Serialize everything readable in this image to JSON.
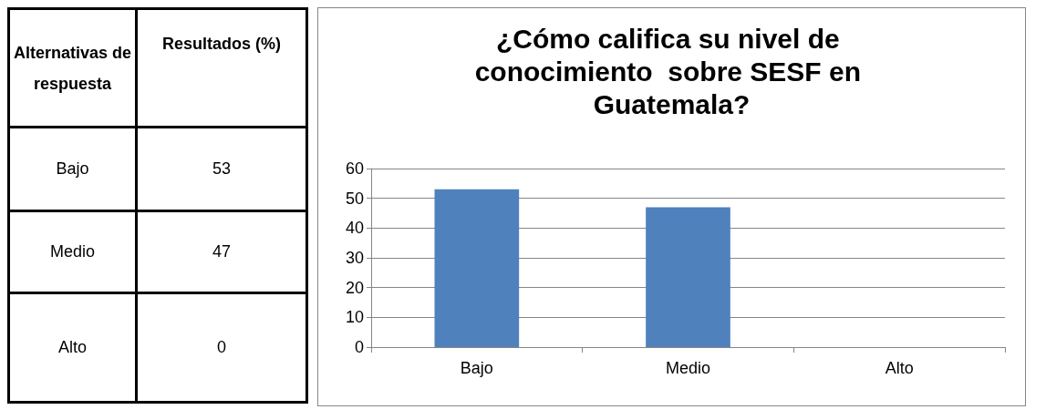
{
  "chart_data": [
    {
      "type": "other",
      "annotations": [
        "Alternativas de respuesta",
        "Resultados (%)"
      ],
      "categories": [
        "Bajo",
        "Medio",
        "Alto"
      ],
      "values": [
        53,
        47,
        0
      ],
      "data_labels": true
    },
    {
      "type": "bar",
      "title": "¿Cómo califica su nivel de conocimiento  sobre SESF en Guatemala?",
      "categories": [
        "Bajo",
        "Medio",
        "Alto"
      ],
      "values": [
        53,
        47,
        0
      ],
      "color": "#4f81bd",
      "ylim": [
        0,
        60
      ],
      "yticks": [
        0,
        10,
        20,
        30,
        40,
        50,
        60
      ],
      "grid": "y"
    }
  ]
}
